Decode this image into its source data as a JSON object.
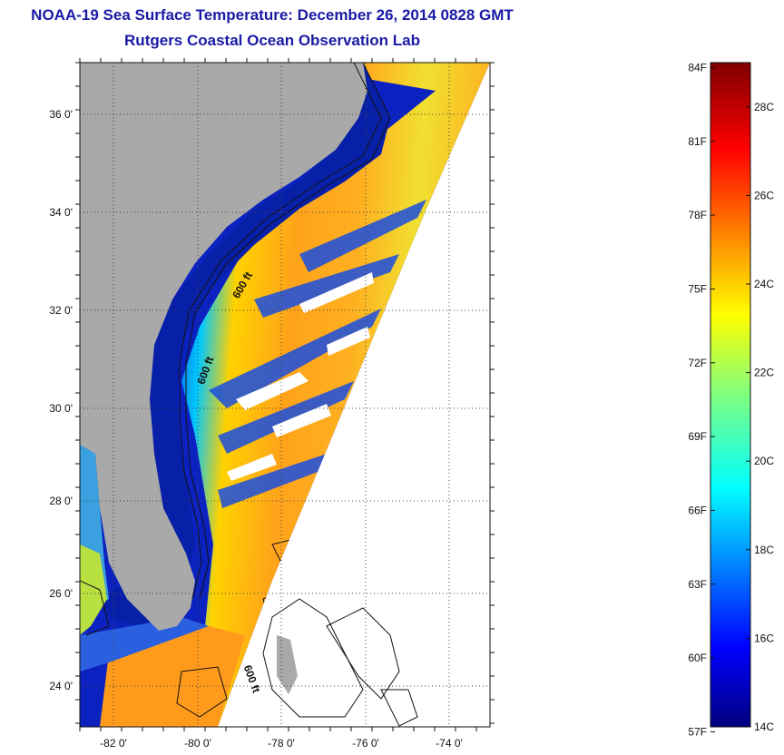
{
  "title": "NOAA-19 Sea Surface Temperature:  December 26, 2014 0828 GMT",
  "subtitle": "Rutgers Coastal Ocean Observation Lab",
  "map": {
    "lon_ticks": [
      "-82 0'",
      "-80 0'",
      "-78 0'",
      "-76 0'",
      "-74 0'"
    ],
    "lat_ticks": [
      "36 0'",
      "34 0'",
      "32 0'",
      "30 0'",
      "28 0'",
      "26 0'",
      "24 0'"
    ],
    "contour_labels": [
      "600 ft",
      "600 ft",
      "600 ft"
    ],
    "colors": {
      "land": "#a9a9a9",
      "cold_water": "#0a1fc8",
      "warm_water": "#ff9a1a",
      "contour": "#111111"
    }
  },
  "colorbar": {
    "min_c": 14,
    "max_c": 29,
    "fahrenheit_labels": [
      "84F",
      "81F",
      "78F",
      "75F",
      "72F",
      "69F",
      "66F",
      "63F",
      "60F",
      "57F"
    ],
    "celsius_labels": [
      "28C",
      "26C",
      "24C",
      "22C",
      "20C",
      "18C",
      "16C",
      "14C"
    ],
    "colormap": "jet"
  }
}
